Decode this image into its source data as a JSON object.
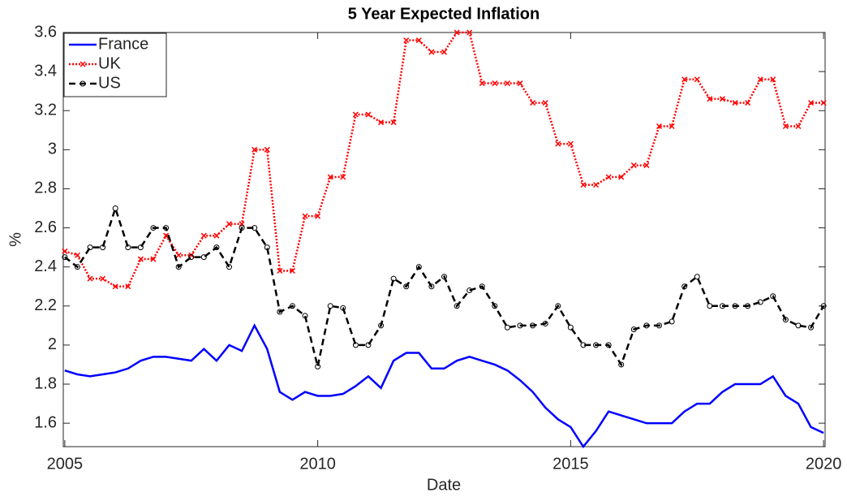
{
  "chart_data": {
    "type": "line",
    "title": "5 Year Expected Inflation",
    "xlabel": "Date",
    "ylabel": "%",
    "x": [
      2005,
      2005.25,
      2005.5,
      2005.75,
      2006,
      2006.25,
      2006.5,
      2006.75,
      2007,
      2007.25,
      2007.5,
      2007.75,
      2008,
      2008.25,
      2008.5,
      2008.75,
      2009,
      2009.25,
      2009.5,
      2009.75,
      2010,
      2010.25,
      2010.5,
      2010.75,
      2011,
      2011.25,
      2011.5,
      2011.75,
      2012,
      2012.25,
      2012.5,
      2012.75,
      2013,
      2013.25,
      2013.5,
      2013.75,
      2014,
      2014.25,
      2014.5,
      2014.75,
      2015,
      2015.25,
      2015.5,
      2015.75,
      2016,
      2016.25,
      2016.5,
      2016.75,
      2017,
      2017.25,
      2017.5,
      2017.75,
      2018,
      2018.25,
      2018.5,
      2018.75,
      2019,
      2019.25,
      2019.5,
      2019.75,
      2020
    ],
    "series": [
      {
        "name": "France",
        "color": "#0000ff",
        "style": "solid",
        "marker": "none",
        "values": [
          1.87,
          1.85,
          1.84,
          1.85,
          1.86,
          1.88,
          1.92,
          1.94,
          1.94,
          1.93,
          1.92,
          1.98,
          1.92,
          2.0,
          1.97,
          2.1,
          1.98,
          1.76,
          1.72,
          1.76,
          1.74,
          1.74,
          1.75,
          1.79,
          1.84,
          1.78,
          1.92,
          1.96,
          1.96,
          1.88,
          1.88,
          1.92,
          1.94,
          1.92,
          1.9,
          1.87,
          1.82,
          1.76,
          1.68,
          1.62,
          1.58,
          1.48,
          1.56,
          1.66,
          1.64,
          1.62,
          1.6,
          1.6,
          1.6,
          1.66,
          1.7,
          1.7,
          1.76,
          1.8,
          1.8,
          1.8,
          1.84,
          1.74,
          1.7,
          1.58,
          1.55
        ]
      },
      {
        "name": "UK",
        "color": "#ff0000",
        "style": "dotted",
        "marker": "x",
        "values": [
          2.48,
          2.46,
          2.34,
          2.34,
          2.3,
          2.3,
          2.44,
          2.44,
          2.56,
          2.46,
          2.46,
          2.56,
          2.56,
          2.62,
          2.62,
          3.0,
          3.0,
          2.38,
          2.38,
          2.66,
          2.66,
          2.86,
          2.86,
          3.18,
          3.18,
          3.14,
          3.14,
          3.56,
          3.56,
          3.5,
          3.5,
          3.6,
          3.6,
          3.34,
          3.34,
          3.34,
          3.34,
          3.24,
          3.24,
          3.03,
          3.03,
          2.82,
          2.82,
          2.86,
          2.86,
          2.92,
          2.92,
          3.12,
          3.12,
          3.36,
          3.36,
          3.26,
          3.26,
          3.24,
          3.24,
          3.36,
          3.36,
          3.12,
          3.12,
          3.24,
          3.24
        ]
      },
      {
        "name": "US",
        "color": "#000000",
        "style": "dashed",
        "marker": "o",
        "values": [
          2.45,
          2.4,
          2.5,
          2.5,
          2.7,
          2.5,
          2.5,
          2.6,
          2.6,
          2.4,
          2.45,
          2.45,
          2.5,
          2.4,
          2.6,
          2.6,
          2.5,
          2.17,
          2.2,
          2.15,
          1.89,
          2.2,
          2.19,
          2.0,
          2.0,
          2.1,
          2.34,
          2.3,
          2.4,
          2.3,
          2.35,
          2.2,
          2.28,
          2.3,
          2.2,
          2.09,
          2.1,
          2.1,
          2.11,
          2.2,
          2.09,
          2.0,
          2.0,
          2.0,
          1.9,
          2.08,
          2.1,
          2.1,
          2.12,
          2.3,
          2.35,
          2.2,
          2.2,
          2.2,
          2.2,
          2.22,
          2.25,
          2.13,
          2.1,
          2.09,
          2.2
        ]
      }
    ],
    "xlim": [
      2004.97,
      2020.03
    ],
    "xticks": [
      2005,
      2010,
      2015,
      2020
    ],
    "ylim": [
      1.48,
      3.6
    ],
    "yticks": [
      1.6,
      1.8,
      2,
      2.2,
      2.4,
      2.6,
      2.8,
      3,
      3.2,
      3.4,
      3.6
    ],
    "grid": false,
    "legend": "top-left"
  }
}
